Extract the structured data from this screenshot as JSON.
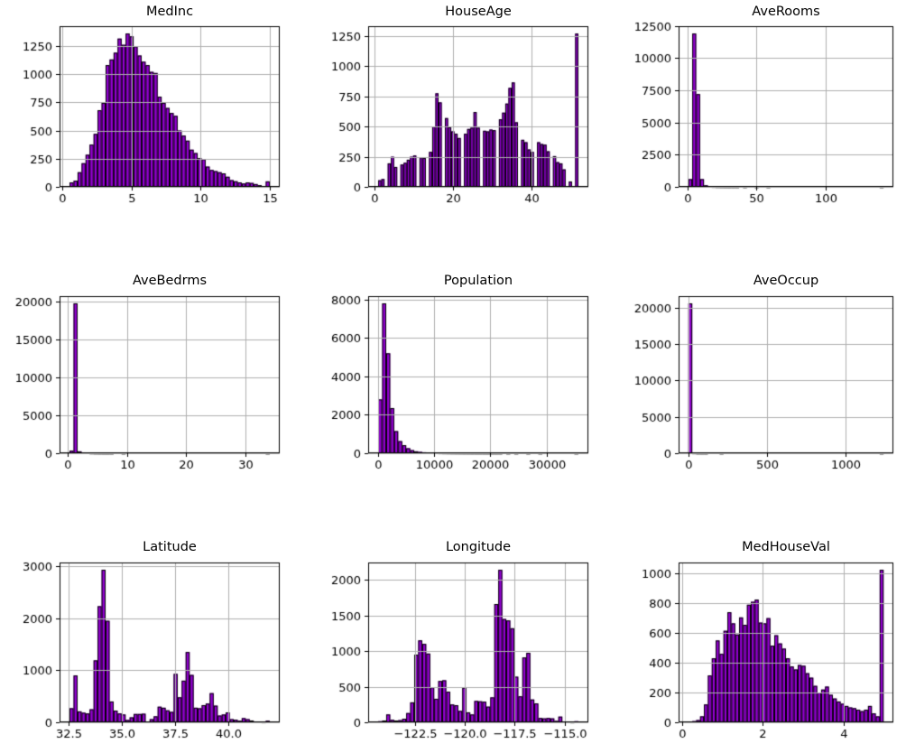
{
  "figure": {
    "background": "#ffffff",
    "bar_color": "#9400D3",
    "bar_edge_color": "#000000",
    "grid_color": "#b0b0b0",
    "spine_color": "#000000",
    "text_color": "#000000",
    "grid": true,
    "legend": "none"
  },
  "chart_data": [
    {
      "type": "bar",
      "subtype": "histogram",
      "title": "MedInc",
      "xlabel": "",
      "ylabel": "",
      "xmin": 0.5,
      "xmax": 15.0,
      "xtick_vals": [
        0,
        5,
        10,
        15
      ],
      "xtick_labels": [
        "0",
        "5",
        "10",
        "15"
      ],
      "ytick_vals": [
        0,
        250,
        500,
        750,
        1000,
        1250
      ],
      "ytick_labels": [
        "0",
        "250",
        "500",
        "750",
        "1000",
        "1250"
      ],
      "ylim": [
        0,
        1425
      ],
      "values": [
        40,
        55,
        130,
        210,
        285,
        375,
        470,
        680,
        745,
        1080,
        1130,
        1190,
        1315,
        1260,
        1360,
        1335,
        1245,
        1165,
        1110,
        1080,
        1020,
        1010,
        800,
        745,
        700,
        655,
        630,
        500,
        455,
        410,
        330,
        300,
        255,
        245,
        180,
        150,
        140,
        130,
        120,
        90,
        60,
        50,
        40,
        30,
        40,
        35,
        25,
        15,
        8,
        49
      ]
    },
    {
      "type": "bar",
      "subtype": "histogram",
      "title": "HouseAge",
      "xlabel": "",
      "ylabel": "",
      "xmin": 1.0,
      "xmax": 52.0,
      "xtick_vals": [
        0,
        20,
        40
      ],
      "xtick_labels": [
        "0",
        "20",
        "40"
      ],
      "ytick_vals": [
        0,
        250,
        500,
        750,
        1000,
        1250
      ],
      "ytick_labels": [
        "0",
        "250",
        "500",
        "750",
        "1000",
        "1250"
      ],
      "ylim": [
        0,
        1331
      ],
      "values": [
        55,
        65,
        0,
        195,
        250,
        165,
        0,
        185,
        200,
        225,
        250,
        260,
        0,
        245,
        240,
        0,
        290,
        500,
        775,
        700,
        0,
        570,
        495,
        460,
        440,
        405,
        0,
        440,
        480,
        490,
        620,
        490,
        0,
        465,
        460,
        475,
        470,
        0,
        560,
        615,
        690,
        820,
        865,
        535,
        0,
        390,
        370,
        310,
        290,
        0,
        370,
        355,
        350,
        295,
        0,
        255,
        205,
        195,
        145,
        0,
        45,
        0,
        1270
      ]
    },
    {
      "type": "bar",
      "subtype": "histogram",
      "title": "AveRooms",
      "xlabel": "",
      "ylabel": "",
      "xmin": 0.85,
      "xmax": 141.9,
      "xtick_vals": [
        0,
        50,
        100
      ],
      "xtick_labels": [
        "0",
        "50",
        "100"
      ],
      "ytick_vals": [
        0,
        2500,
        5000,
        7500,
        10000,
        12500
      ],
      "ytick_labels": [
        "0",
        "2500",
        "5000",
        "7500",
        "10000",
        "12500"
      ],
      "ylim": [
        0,
        12470
      ],
      "values": [
        600,
        11900,
        7200,
        600,
        120,
        45,
        18,
        8,
        4,
        2,
        1,
        1,
        1,
        0,
        1,
        0,
        0,
        1,
        0,
        0,
        1,
        0,
        0,
        0,
        0,
        0,
        0,
        0,
        0,
        0,
        0,
        0,
        0,
        0,
        0,
        0,
        0,
        0,
        0,
        0,
        0,
        0,
        0,
        0,
        0,
        0,
        0,
        0,
        0,
        1
      ]
    },
    {
      "type": "bar",
      "subtype": "histogram",
      "title": "AveBedrms",
      "xlabel": "",
      "ylabel": "",
      "xmin": 0.33,
      "xmax": 34.07,
      "xtick_vals": [
        0,
        10,
        20,
        30
      ],
      "xtick_labels": [
        "0",
        "10",
        "20",
        "30"
      ],
      "ytick_vals": [
        0,
        5000,
        10000,
        15000,
        20000
      ],
      "ytick_labels": [
        "0",
        "5000",
        "10000",
        "15000",
        "20000"
      ],
      "ylim": [
        0,
        20750
      ],
      "values": [
        350,
        19800,
        250,
        120,
        50,
        20,
        8,
        4,
        2,
        1,
        1,
        0,
        0,
        1,
        0,
        0,
        0,
        0,
        0,
        0,
        0,
        0,
        0,
        0,
        0,
        0,
        0,
        0,
        0,
        0,
        0,
        0,
        0,
        0,
        0,
        0,
        0,
        0,
        0,
        0,
        0,
        0,
        0,
        0,
        0,
        0,
        0,
        0,
        0,
        1
      ]
    },
    {
      "type": "bar",
      "subtype": "histogram",
      "title": "Population",
      "xlabel": "",
      "ylabel": "",
      "xmin": 3,
      "xmax": 35682,
      "xtick_vals": [
        0,
        10000,
        20000,
        30000
      ],
      "xtick_labels": [
        "0",
        "10000",
        "20000",
        "30000"
      ],
      "ytick_vals": [
        0,
        2000,
        4000,
        6000,
        8000
      ],
      "ytick_labels": [
        "0",
        "2000",
        "4000",
        "6000",
        "8000"
      ],
      "ylim": [
        0,
        8175
      ],
      "values": [
        2800,
        7800,
        5200,
        2350,
        1150,
        630,
        420,
        260,
        160,
        100,
        70,
        50,
        35,
        25,
        18,
        14,
        10,
        8,
        6,
        5,
        4,
        3,
        3,
        2,
        2,
        2,
        1,
        1,
        1,
        1,
        1,
        0,
        1,
        0,
        1,
        0,
        0,
        1,
        0,
        0,
        1,
        0,
        0,
        0,
        0,
        0,
        0,
        0,
        0,
        1
      ]
    },
    {
      "type": "bar",
      "subtype": "histogram",
      "title": "AveOccup",
      "xlabel": "",
      "ylabel": "",
      "xmin": 0.69,
      "xmax": 1243.3,
      "xtick_vals": [
        0,
        500,
        1000
      ],
      "xtick_labels": [
        "0",
        "500",
        "1000"
      ],
      "ytick_vals": [
        0,
        5000,
        10000,
        15000,
        20000
      ],
      "ytick_labels": [
        "0",
        "5000",
        "10000",
        "15000",
        "20000"
      ],
      "ylim": [
        0,
        21590
      ],
      "values": [
        20600,
        30,
        5,
        2,
        1,
        0,
        0,
        0,
        1,
        0,
        0,
        0,
        0,
        0,
        0,
        0,
        0,
        0,
        0,
        0,
        0,
        0,
        0,
        0,
        0,
        0,
        0,
        0,
        0,
        0,
        0,
        0,
        0,
        0,
        0,
        0,
        0,
        0,
        0,
        0,
        0,
        0,
        0,
        0,
        0,
        0,
        0,
        0,
        0,
        1
      ]
    },
    {
      "type": "bar",
      "subtype": "histogram",
      "title": "Latitude",
      "xlabel": "",
      "ylabel": "",
      "xmin": 32.54,
      "xmax": 41.95,
      "xtick_vals": [
        32.5,
        35.0,
        37.5,
        40.0
      ],
      "xtick_labels": [
        "32.5",
        "35.0",
        "37.5",
        "40.0"
      ],
      "ytick_vals": [
        0,
        1000,
        2000,
        3000
      ],
      "ytick_labels": [
        "0",
        "1000",
        "2000",
        "3000"
      ],
      "ylim": [
        0,
        3070
      ],
      "values": [
        270,
        900,
        210,
        185,
        170,
        250,
        1190,
        2230,
        2930,
        1950,
        400,
        225,
        170,
        150,
        45,
        95,
        160,
        160,
        165,
        15,
        60,
        115,
        300,
        280,
        230,
        200,
        930,
        480,
        800,
        1350,
        910,
        280,
        270,
        330,
        360,
        560,
        320,
        130,
        150,
        190,
        60,
        50,
        30,
        80,
        60,
        35,
        15,
        8,
        5,
        30
      ]
    },
    {
      "type": "bar",
      "subtype": "histogram",
      "title": "Longitude",
      "xlabel": "",
      "ylabel": "",
      "xmin": -124.35,
      "xmax": -114.31,
      "xtick_vals": [
        -122.5,
        -120.0,
        -117.5,
        -115.0
      ],
      "xtick_labels": [
        "−122.5",
        "−120.0",
        "−117.5",
        "−115.0"
      ],
      "ytick_vals": [
        0,
        500,
        1000,
        1500,
        2000
      ],
      "ytick_labels": [
        "0",
        "500",
        "1000",
        "1500",
        "2000"
      ],
      "ylim": [
        0,
        2243
      ],
      "values": [
        15,
        25,
        110,
        35,
        25,
        30,
        50,
        130,
        280,
        950,
        1150,
        1100,
        965,
        490,
        330,
        580,
        590,
        430,
        250,
        240,
        160,
        485,
        140,
        110,
        300,
        295,
        290,
        220,
        350,
        1660,
        2140,
        1450,
        1430,
        1320,
        640,
        365,
        910,
        975,
        320,
        265,
        60,
        55,
        60,
        55,
        20,
        80,
        10,
        5,
        3,
        15
      ]
    },
    {
      "type": "bar",
      "subtype": "histogram",
      "title": "MedHouseVal",
      "xlabel": "",
      "ylabel": "",
      "xmin": 0.15,
      "xmax": 5.0,
      "xtick_vals": [
        0,
        2,
        4
      ],
      "xtick_labels": [
        "0",
        "2",
        "4"
      ],
      "ytick_vals": [
        0,
        200,
        400,
        600,
        800,
        1000
      ],
      "ytick_labels": [
        "0",
        "200",
        "400",
        "600",
        "800",
        "1000"
      ],
      "ylim": [
        0,
        1074
      ],
      "values": [
        4,
        8,
        15,
        40,
        120,
        315,
        430,
        550,
        460,
        615,
        740,
        665,
        590,
        705,
        655,
        790,
        810,
        825,
        670,
        665,
        700,
        515,
        585,
        530,
        495,
        430,
        375,
        355,
        385,
        380,
        330,
        300,
        245,
        200,
        220,
        240,
        185,
        160,
        140,
        125,
        110,
        100,
        95,
        85,
        75,
        85,
        110,
        60,
        40,
        1025
      ]
    }
  ]
}
